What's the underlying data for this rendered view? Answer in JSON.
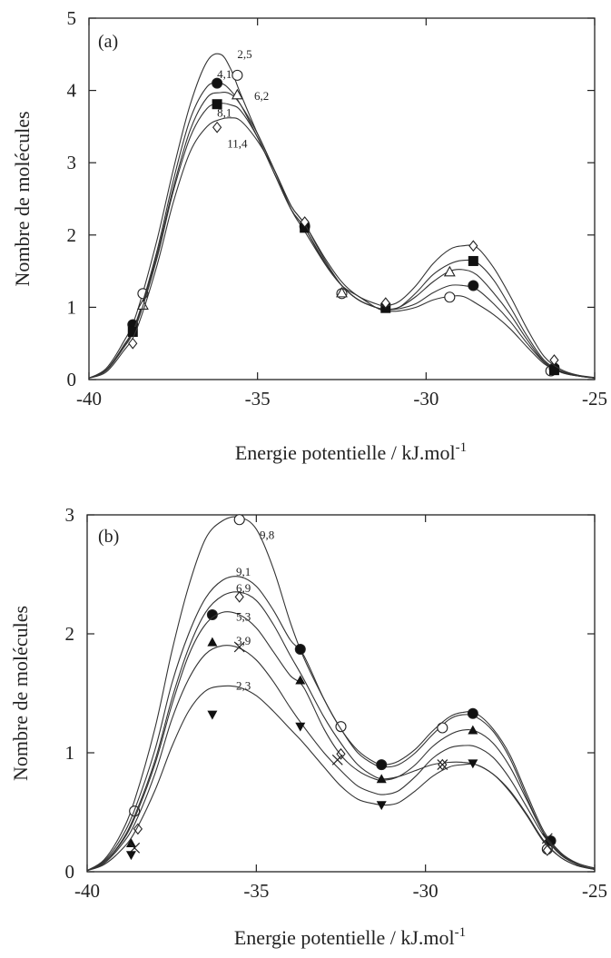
{
  "chart_data": [
    {
      "type": "line",
      "panel_label": "(a)",
      "xlabel": "Energie potentielle / kJ.mol",
      "xlabel_sup": "-1",
      "ylabel": "Nombre de molécules",
      "xlim": [
        -40,
        -25
      ],
      "ylim": [
        0,
        5
      ],
      "x_ticks": [
        -40,
        -35,
        -30,
        -25
      ],
      "x_tick_labels": [
        "-40",
        "-35",
        "-30",
        "-25"
      ],
      "y_ticks": [
        0,
        1,
        2,
        3,
        4,
        5
      ],
      "y_tick_labels": [
        "0",
        "1",
        "2",
        "3",
        "4",
        "5"
      ],
      "grid": false,
      "x": [
        -40,
        -39.5,
        -39,
        -38.6,
        -38,
        -37.5,
        -37,
        -36.5,
        -36.1,
        -35.8,
        -35.5,
        -35,
        -34.5,
        -34,
        -33.6,
        -33,
        -32.5,
        -32,
        -31.5,
        -31.2,
        -30.8,
        -30.3,
        -29.8,
        -29.3,
        -28.9,
        -28.5,
        -28,
        -27.5,
        -27,
        -26.5,
        -26,
        -25.5,
        -25
      ],
      "series": [
        {
          "name": "2,5",
          "marker": "open-circle",
          "label_at": [
            -35.6,
            4.5
          ],
          "values": [
            0.02,
            0.15,
            0.5,
            0.9,
            1.9,
            2.9,
            3.8,
            4.4,
            4.5,
            4.3,
            3.95,
            3.4,
            2.9,
            2.35,
            2.05,
            1.6,
            1.3,
            1.15,
            1.0,
            0.95,
            0.95,
            1.0,
            1.1,
            1.15,
            1.15,
            1.05,
            0.9,
            0.7,
            0.45,
            0.22,
            0.1,
            0.05,
            0.02
          ],
          "markers": [
            [
              -38.4,
              1.19
            ],
            [
              -35.6,
              4.21
            ],
            [
              -32.5,
              1.19
            ],
            [
              -29.3,
              1.14
            ],
            [
              -26.3,
              0.12
            ]
          ]
        },
        {
          "name": "4,1",
          "marker": "filled-circle",
          "label_at": [
            -36.2,
            4.22
          ],
          "values": [
            0.02,
            0.13,
            0.45,
            0.8,
            1.75,
            2.75,
            3.6,
            4.05,
            4.1,
            4.0,
            3.8,
            3.35,
            2.85,
            2.35,
            2.1,
            1.6,
            1.3,
            1.1,
            1.0,
            0.97,
            0.98,
            1.05,
            1.2,
            1.3,
            1.3,
            1.25,
            1.05,
            0.8,
            0.5,
            0.24,
            0.1,
            0.05,
            0.02
          ],
          "markers": [
            [
              -38.7,
              0.76
            ],
            [
              -36.2,
              4.1
            ],
            [
              -33.6,
              2.12
            ],
            [
              -28.6,
              1.3
            ],
            [
              -26.2,
              0.16
            ]
          ]
        },
        {
          "name": "6,2",
          "marker": "open-triangle",
          "label_at": [
            -35.1,
            3.92
          ],
          "values": [
            0.02,
            0.13,
            0.44,
            0.78,
            1.7,
            2.65,
            3.45,
            3.9,
            3.97,
            3.95,
            3.8,
            3.4,
            2.9,
            2.4,
            2.15,
            1.65,
            1.3,
            1.1,
            1.0,
            0.97,
            1.0,
            1.15,
            1.35,
            1.5,
            1.52,
            1.45,
            1.2,
            0.9,
            0.55,
            0.25,
            0.11,
            0.05,
            0.02
          ],
          "markers": [
            [
              -38.4,
              1.03
            ],
            [
              -35.6,
              3.94
            ],
            [
              -32.5,
              1.2
            ],
            [
              -29.3,
              1.49
            ]
          ]
        },
        {
          "name": "8,1",
          "marker": "filled-square",
          "label_at": [
            -36.2,
            3.69
          ],
          "values": [
            0.02,
            0.12,
            0.42,
            0.75,
            1.65,
            2.6,
            3.35,
            3.75,
            3.82,
            3.8,
            3.72,
            3.35,
            2.85,
            2.35,
            2.1,
            1.62,
            1.3,
            1.1,
            1.0,
            0.97,
            1.0,
            1.2,
            1.45,
            1.6,
            1.65,
            1.62,
            1.38,
            1.0,
            0.6,
            0.27,
            0.12,
            0.06,
            0.02
          ],
          "markers": [
            [
              -38.7,
              0.66
            ],
            [
              -36.2,
              3.81
            ],
            [
              -33.6,
              2.1
            ],
            [
              -31.2,
              0.99
            ],
            [
              -28.6,
              1.64
            ],
            [
              -26.2,
              0.13
            ]
          ]
        },
        {
          "name": "11,4",
          "marker": "open-diamond",
          "label_at": [
            -35.9,
            3.26
          ],
          "values": [
            0.02,
            0.1,
            0.38,
            0.68,
            1.55,
            2.45,
            3.15,
            3.5,
            3.6,
            3.62,
            3.58,
            3.3,
            2.9,
            2.4,
            2.15,
            1.68,
            1.35,
            1.15,
            1.05,
            1.02,
            1.08,
            1.3,
            1.6,
            1.8,
            1.85,
            1.83,
            1.55,
            1.15,
            0.7,
            0.32,
            0.14,
            0.06,
            0.03
          ],
          "markers": [
            [
              -38.7,
              0.5
            ],
            [
              -36.2,
              3.49
            ],
            [
              -33.6,
              2.18
            ],
            [
              -31.2,
              1.06
            ],
            [
              -28.6,
              1.85
            ],
            [
              -26.2,
              0.27
            ]
          ]
        }
      ]
    },
    {
      "type": "line",
      "panel_label": "(b)",
      "xlabel": "Energie potentielle / kJ.mol",
      "xlabel_sup": "-1",
      "ylabel": "Nombre de molécules",
      "xlim": [
        -40,
        -25
      ],
      "ylim": [
        0,
        3
      ],
      "x_ticks": [
        -40,
        -35,
        -30,
        -25
      ],
      "x_tick_labels": [
        "-40",
        "-35",
        "-30",
        "-25"
      ],
      "y_ticks": [
        0,
        1,
        2,
        3
      ],
      "y_tick_labels": [
        "0",
        "1",
        "2",
        "3"
      ],
      "grid": false,
      "x": [
        -40,
        -39.5,
        -39,
        -38.6,
        -38,
        -37.5,
        -37,
        -36.5,
        -36,
        -35.5,
        -35,
        -34.5,
        -34,
        -33.6,
        -33,
        -32.5,
        -32,
        -31.5,
        -31.2,
        -30.8,
        -30.3,
        -29.8,
        -29.3,
        -28.9,
        -28.5,
        -28,
        -27.5,
        -27,
        -26.5,
        -26,
        -25.5,
        -25
      ],
      "series": [
        {
          "name": "9,8",
          "marker": "open-circle",
          "label_at": [
            -34.9,
            2.83
          ],
          "values": [
            0.01,
            0.1,
            0.32,
            0.6,
            1.2,
            1.85,
            2.4,
            2.8,
            2.95,
            2.98,
            2.88,
            2.55,
            2.1,
            1.8,
            1.45,
            1.2,
            1.0,
            0.9,
            0.88,
            0.9,
            1.0,
            1.15,
            1.28,
            1.32,
            1.3,
            1.18,
            0.95,
            0.62,
            0.32,
            0.15,
            0.07,
            0.03
          ],
          "markers": [
            [
              -38.6,
              0.51
            ],
            [
              -35.5,
              2.96
            ],
            [
              -32.5,
              1.22
            ],
            [
              -29.5,
              1.21
            ],
            [
              -26.4,
              0.19
            ]
          ]
        },
        {
          "name": "9,1",
          "marker": "filled-circle",
          "label_at": [
            -35.6,
            2.52
          ],
          "values": [
            0.01,
            0.09,
            0.28,
            0.52,
            1.02,
            1.58,
            2.0,
            2.3,
            2.45,
            2.48,
            2.4,
            2.2,
            1.95,
            1.82,
            1.45,
            1.2,
            1.02,
            0.92,
            0.9,
            0.93,
            1.03,
            1.18,
            1.3,
            1.34,
            1.33,
            1.2,
            0.98,
            0.65,
            0.34,
            0.16,
            0.07,
            0.03
          ],
          "markers": [
            [
              -36.3,
              2.16
            ],
            [
              -33.7,
              1.87
            ],
            [
              -31.3,
              0.9
            ],
            [
              -28.6,
              1.33
            ],
            [
              -26.3,
              0.26
            ]
          ]
        },
        {
          "name": "6,9",
          "marker": "open-diamond",
          "label_at": [
            -35.6,
            2.38
          ],
          "values": [
            0.01,
            0.08,
            0.25,
            0.47,
            0.93,
            1.45,
            1.88,
            2.18,
            2.32,
            2.35,
            2.28,
            2.08,
            1.82,
            1.62,
            1.3,
            1.08,
            0.9,
            0.8,
            0.78,
            0.8,
            0.85,
            0.9,
            0.92,
            0.92,
            0.9,
            0.82,
            0.68,
            0.48,
            0.26,
            0.12,
            0.05,
            0.02
          ],
          "markers": [
            [
              -38.5,
              0.36
            ],
            [
              -35.5,
              2.31
            ],
            [
              -32.5,
              0.99
            ],
            [
              -29.5,
              0.9
            ],
            [
              -26.4,
              0.18
            ]
          ]
        },
        {
          "name": "5,3",
          "marker": "filled-triangle",
          "label_at": [
            -35.6,
            2.14
          ],
          "values": [
            0.01,
            0.08,
            0.24,
            0.45,
            0.9,
            1.4,
            1.82,
            2.08,
            2.18,
            2.16,
            2.05,
            1.85,
            1.65,
            1.55,
            1.2,
            0.98,
            0.85,
            0.78,
            0.77,
            0.8,
            0.9,
            1.05,
            1.15,
            1.19,
            1.18,
            1.08,
            0.88,
            0.6,
            0.32,
            0.15,
            0.06,
            0.02
          ],
          "markers": [
            [
              -38.7,
              0.24
            ],
            [
              -36.3,
              1.93
            ],
            [
              -33.7,
              1.61
            ],
            [
              -31.3,
              0.78
            ],
            [
              -28.6,
              1.19
            ]
          ]
        },
        {
          "name": "3,9",
          "marker": "cross",
          "label_at": [
            -35.6,
            1.94
          ],
          "values": [
            0.01,
            0.07,
            0.22,
            0.4,
            0.82,
            1.28,
            1.62,
            1.83,
            1.9,
            1.88,
            1.78,
            1.6,
            1.38,
            1.22,
            1.0,
            0.85,
            0.72,
            0.66,
            0.65,
            0.68,
            0.8,
            0.95,
            1.04,
            1.06,
            1.05,
            0.96,
            0.78,
            0.54,
            0.3,
            0.14,
            0.06,
            0.02
          ],
          "markers": [
            [
              -38.6,
              0.2
            ],
            [
              -35.5,
              1.89
            ],
            [
              -32.6,
              0.94
            ],
            [
              -29.5,
              0.9
            ],
            [
              -26.4,
              0.28
            ]
          ]
        },
        {
          "name": "2,3",
          "marker": "filled-triangle-down",
          "label_at": [
            -35.6,
            1.56
          ],
          "values": [
            0.01,
            0.06,
            0.18,
            0.33,
            0.68,
            1.05,
            1.35,
            1.52,
            1.56,
            1.55,
            1.48,
            1.35,
            1.2,
            1.08,
            0.88,
            0.72,
            0.61,
            0.57,
            0.56,
            0.58,
            0.68,
            0.8,
            0.88,
            0.9,
            0.9,
            0.82,
            0.67,
            0.47,
            0.25,
            0.12,
            0.05,
            0.02
          ],
          "markers": [
            [
              -38.7,
              0.14
            ],
            [
              -36.3,
              1.32
            ],
            [
              -33.7,
              1.22
            ],
            [
              -31.3,
              0.56
            ],
            [
              -28.6,
              0.91
            ]
          ]
        }
      ]
    }
  ]
}
